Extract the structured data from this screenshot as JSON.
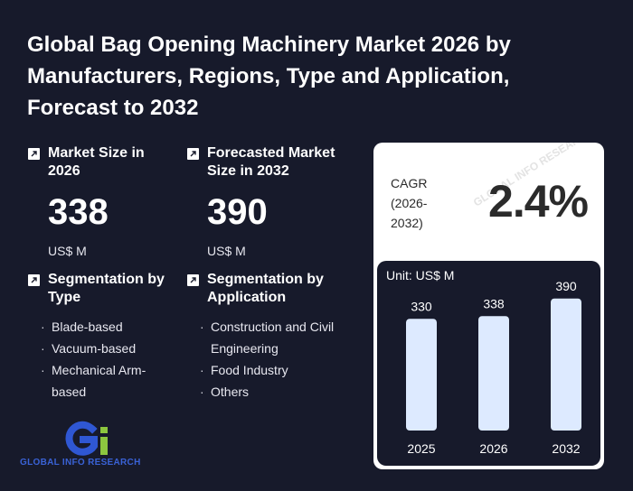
{
  "title": "Global Bag Opening Machinery Market 2026 by Manufacturers, Regions, Type and Application, Forecast to 2032",
  "market_size": {
    "label": "Market Size in 2026",
    "value": "338",
    "unit": "US$ M"
  },
  "forecast_size": {
    "label": "Forecasted Market Size in 2032",
    "value": "390",
    "unit": "US$ M"
  },
  "segment_type": {
    "label": "Segmentation by Type",
    "items": [
      "Blade-based",
      "Vacuum-based",
      "Mechanical Arm-based"
    ]
  },
  "segment_application": {
    "label": "Segmentation by Application",
    "items": [
      "Construction and Civil Engineering",
      "Food Industry",
      "Others"
    ]
  },
  "cagr": {
    "label_line1": "CAGR",
    "label_line2": "(2026-",
    "label_line3": "2032)",
    "value": "2.4%"
  },
  "logo": {
    "text": "GLOBAL INFO RESEARCH"
  },
  "colors": {
    "background": "#171a2b",
    "bar": "#ddeaff",
    "card": "#ffffff",
    "logo_blue": "#2f57d3",
    "logo_green": "#8cc63f"
  },
  "chart_data": {
    "type": "bar",
    "unit_label": "Unit: US$ M",
    "categories": [
      "2025",
      "2026",
      "2032"
    ],
    "values": [
      330,
      338,
      390
    ],
    "ylim": [
      0,
      400
    ],
    "grid": false,
    "legend": "none"
  }
}
